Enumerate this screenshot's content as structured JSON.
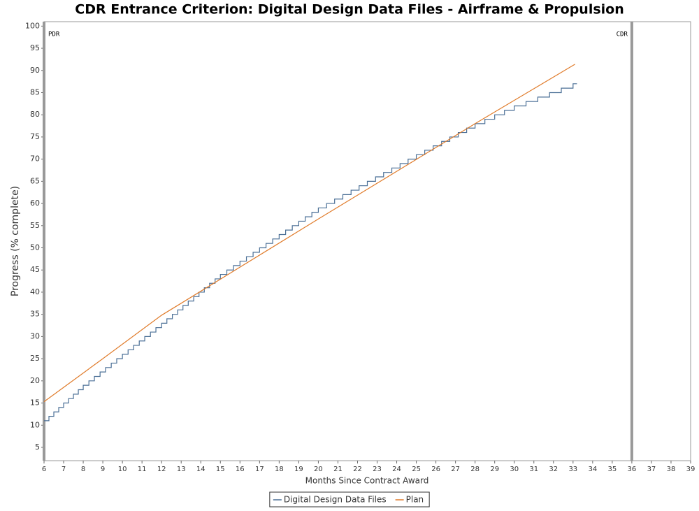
{
  "chart_data": {
    "type": "line",
    "title": "CDR Entrance Criterion: Digital Design Data Files - Airframe & Propulsion",
    "x_label": "Months Since Contract Award",
    "y_label": "Progress (% complete)",
    "xlim": [
      6,
      39
    ],
    "ylim": [
      2,
      101
    ],
    "xticks": [
      6,
      7,
      8,
      9,
      10,
      11,
      12,
      13,
      14,
      15,
      16,
      17,
      18,
      19,
      20,
      21,
      22,
      23,
      24,
      25,
      26,
      27,
      28,
      29,
      30,
      31,
      32,
      33,
      34,
      35,
      36,
      37,
      38,
      39
    ],
    "yticks": [
      5,
      10,
      15,
      20,
      25,
      30,
      35,
      40,
      45,
      50,
      55,
      60,
      65,
      70,
      75,
      80,
      85,
      90,
      95,
      100
    ],
    "markers": [
      {
        "label": "PDR",
        "x": 6
      },
      {
        "label": "CDR",
        "x": 36
      }
    ],
    "legend": "bottom",
    "series": [
      {
        "name": "Digital Design Data Files",
        "color": "#4a6f96",
        "step": true,
        "x": [
          6,
          6.25,
          6.5,
          6.75,
          7,
          7.25,
          7.5,
          7.75,
          8,
          8.29,
          8.57,
          8.86,
          9.14,
          9.43,
          9.71,
          10,
          10.29,
          10.57,
          10.86,
          11.14,
          11.43,
          11.71,
          12,
          12.27,
          12.55,
          12.82,
          13.09,
          13.36,
          13.64,
          13.91,
          14.18,
          14.45,
          14.73,
          15,
          15.33,
          15.67,
          16,
          16.33,
          16.67,
          17,
          17.33,
          17.67,
          18,
          18.33,
          18.67,
          19,
          19.33,
          19.67,
          20,
          20.42,
          20.83,
          21.25,
          21.67,
          22.08,
          22.5,
          22.92,
          23.33,
          23.75,
          24.17,
          24.58,
          25,
          25.43,
          25.86,
          26.29,
          26.71,
          27.14,
          27.57,
          28,
          28.5,
          29,
          29.5,
          30,
          30.6,
          31.2,
          31.8,
          32.4,
          33,
          33.2
        ],
        "values": [
          11,
          12,
          13,
          14,
          15,
          16,
          17,
          18,
          19,
          20,
          21,
          22,
          23,
          24,
          25,
          26,
          27,
          28,
          29,
          30,
          31,
          32,
          33,
          34,
          35,
          36,
          37,
          38,
          39,
          40,
          41,
          42,
          43,
          44,
          45,
          46,
          47,
          48,
          49,
          50,
          51,
          52,
          53,
          54,
          55,
          56,
          57,
          58,
          59,
          60,
          61,
          62,
          63,
          64,
          65,
          66,
          67,
          68,
          69,
          70,
          71,
          72,
          73,
          74,
          75,
          76,
          77,
          78,
          79,
          80,
          81,
          82,
          83,
          84,
          85,
          86,
          87,
          87
        ]
      },
      {
        "name": "Plan",
        "color": "#e07b2a",
        "step": false,
        "x": [
          6,
          9,
          12,
          13,
          20,
          28,
          33.1
        ],
        "values": [
          15.3,
          25,
          34.8,
          37.5,
          56.5,
          78,
          91.4
        ]
      }
    ]
  }
}
